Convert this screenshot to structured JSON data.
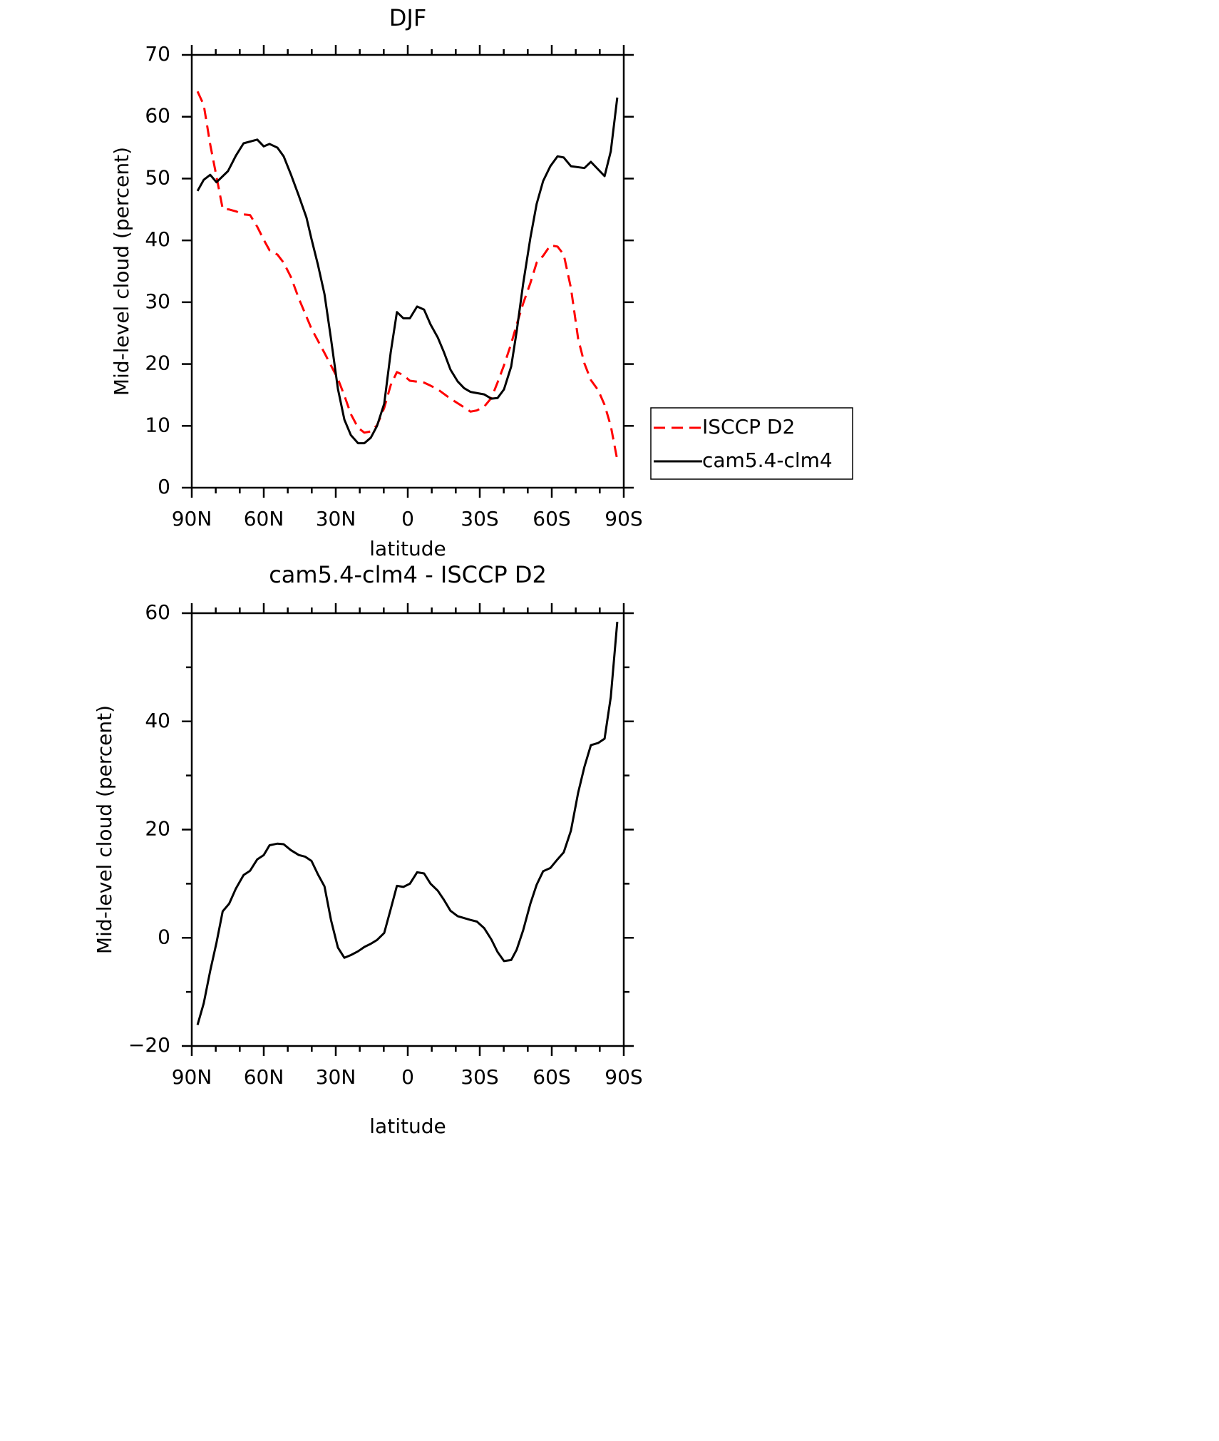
{
  "chart_data": [
    {
      "type": "line",
      "title": "DJF",
      "xlabel": "latitude",
      "ylabel": "Mid-level cloud (percent)",
      "xlim": [
        90,
        -90
      ],
      "xticks": [
        {
          "value": 90,
          "label": "90N"
        },
        {
          "value": 60,
          "label": "60N"
        },
        {
          "value": 30,
          "label": "30N"
        },
        0,
        {
          "value": -30,
          "label": "30S"
        },
        {
          "value": -60,
          "label": "60S"
        },
        {
          "value": -90,
          "label": "90S"
        }
      ],
      "xminorticks": [
        80,
        70,
        50,
        40,
        20,
        10,
        -10,
        -20,
        -40,
        -50,
        -70,
        -80
      ],
      "ylim": [
        0,
        70
      ],
      "yticks": [
        0,
        10,
        20,
        30,
        40,
        50,
        60,
        70
      ],
      "legend": "right",
      "series": [
        {
          "name": "ISCCP D2",
          "color": "#ff0000",
          "dash": true,
          "x": [
            87.6,
            85.0,
            82.3,
            79.7,
            77.1,
            74.4,
            71.6,
            68.4,
            65.7,
            62.7,
            60.0,
            57.6,
            54.3,
            51.7,
            48.7,
            45.4,
            40.1,
            34.7,
            29.1,
            26.4,
            23.7,
            20.7,
            18.1,
            15.4,
            12.8,
            9.8,
            7.1,
            4.5,
            1.8,
            -0.9,
            -6.8,
            -9.5,
            -12.5,
            -17.8,
            -23.5,
            -26.1,
            -28.8,
            -31.8,
            -34.8,
            -37.4,
            -40.1,
            -43.1,
            -45.4,
            -48.1,
            -51.1,
            -53.7,
            -56.4,
            -59.4,
            -62.4,
            -65.0,
            -68.0,
            -71.0,
            -73.6,
            -76.3,
            -79.3,
            -82.0,
            -84.6,
            -87.3
          ],
          "values": [
            64.1,
            61.9,
            55.5,
            50.3,
            45.1,
            45.0,
            44.7,
            44.2,
            44.1,
            42.2,
            40.1,
            38.4,
            37.7,
            36.4,
            34.1,
            30.6,
            25.7,
            21.8,
            17.6,
            14.9,
            11.9,
            9.7,
            8.9,
            9.1,
            10.1,
            12.9,
            16.6,
            18.7,
            18.2,
            17.3,
            17.0,
            16.5,
            15.9,
            14.4,
            13.0,
            12.3,
            12.5,
            13.1,
            14.5,
            17.0,
            19.8,
            23.3,
            26.4,
            29.8,
            33.1,
            36.4,
            37.5,
            39.2,
            39.0,
            37.7,
            32.3,
            24.1,
            20.1,
            17.4,
            15.8,
            13.4,
            10.0,
            4.5
          ]
        },
        {
          "name": "cam5.4-clm4",
          "color": "#000000",
          "dash": false,
          "x": [
            87.6,
            85.0,
            82.3,
            79.7,
            74.9,
            71.6,
            68.4,
            62.7,
            60.0,
            57.6,
            54.3,
            51.7,
            48.7,
            45.4,
            42.2,
            40.1,
            37.4,
            34.7,
            32.0,
            29.1,
            26.4,
            23.7,
            20.7,
            18.1,
            15.4,
            12.8,
            9.8,
            7.1,
            4.5,
            1.8,
            -0.9,
            -3.9,
            -6.8,
            -9.5,
            -12.5,
            -15.1,
            -17.8,
            -20.8,
            -23.5,
            -26.1,
            -31.8,
            -34.8,
            -37.4,
            -40.1,
            -43.1,
            -45.4,
            -48.1,
            -51.1,
            -53.7,
            -56.4,
            -59.4,
            -62.4,
            -65.0,
            -68.0,
            -73.6,
            -76.3,
            -82.0,
            -84.6,
            -87.3
          ],
          "values": [
            48.0,
            49.8,
            50.6,
            49.4,
            51.2,
            53.7,
            55.7,
            56.3,
            55.2,
            55.6,
            55.0,
            53.6,
            50.7,
            47.2,
            43.7,
            40.2,
            36.0,
            31.3,
            24.1,
            16.0,
            11.0,
            8.5,
            7.2,
            7.2,
            8.1,
            10.0,
            13.6,
            21.9,
            28.4,
            27.4,
            27.4,
            29.3,
            28.8,
            26.4,
            24.3,
            21.9,
            19.1,
            17.2,
            16.1,
            15.5,
            15.1,
            14.4,
            14.5,
            15.9,
            19.6,
            25.3,
            33.0,
            40.4,
            45.9,
            49.6,
            52.0,
            53.6,
            53.4,
            52.0,
            51.7,
            52.7,
            50.4,
            54.4,
            63.1
          ]
        }
      ]
    },
    {
      "type": "line",
      "title": "cam5.4-clm4 - ISCCP D2",
      "xlabel": "latitude",
      "ylabel": "Mid-level cloud (percent)",
      "xlim": [
        90,
        -90
      ],
      "xticks": [
        {
          "value": 90,
          "label": "90N"
        },
        {
          "value": 60,
          "label": "60N"
        },
        {
          "value": 30,
          "label": "30N"
        },
        0,
        {
          "value": -30,
          "label": "30S"
        },
        {
          "value": -60,
          "label": "60S"
        },
        {
          "value": -90,
          "label": "90S"
        }
      ],
      "xminorticks": [
        80,
        70,
        50,
        40,
        20,
        10,
        -10,
        -20,
        -40,
        -50,
        -70,
        -80
      ],
      "ylim": [
        -20,
        60
      ],
      "yticks": [
        {
          "value": -20,
          "label": "−20"
        },
        0,
        20,
        40,
        60
      ],
      "yminorticks": [
        -10,
        10,
        30,
        50
      ],
      "series": [
        {
          "color": "#000000",
          "dash": false,
          "x": [
            87.6,
            85.0,
            82.3,
            79.7,
            77.1,
            74.4,
            71.6,
            68.4,
            65.7,
            62.7,
            60.0,
            57.6,
            54.3,
            51.7,
            48.7,
            45.4,
            42.8,
            40.1,
            37.4,
            34.7,
            32.0,
            29.1,
            26.4,
            23.7,
            20.7,
            18.1,
            15.4,
            12.8,
            9.8,
            7.1,
            4.5,
            1.8,
            -0.9,
            -3.9,
            -6.8,
            -9.5,
            -12.5,
            -15.1,
            -17.8,
            -20.8,
            -26.1,
            -28.8,
            -31.8,
            -34.8,
            -37.4,
            -40.1,
            -43.1,
            -45.4,
            -48.1,
            -51.1,
            -53.7,
            -56.4,
            -59.4,
            -62.4,
            -65.0,
            -68.0,
            -71.0,
            -73.6,
            -76.3,
            -79.3,
            -82.0,
            -84.6,
            -87.3
          ],
          "values": [
            -16.1,
            -12.1,
            -6.1,
            -0.9,
            4.9,
            6.3,
            9.1,
            11.6,
            12.4,
            14.5,
            15.3,
            17.1,
            17.4,
            17.3,
            16.2,
            15.3,
            15.0,
            14.2,
            11.7,
            9.5,
            3.3,
            -1.8,
            -3.7,
            -3.2,
            -2.5,
            -1.7,
            -1.1,
            -0.4,
            0.9,
            5.3,
            9.6,
            9.4,
            10.0,
            12.1,
            11.9,
            10.0,
            8.7,
            7.0,
            5.0,
            4.0,
            3.3,
            3.0,
            1.8,
            -0.3,
            -2.6,
            -4.3,
            -4.1,
            -2.2,
            1.4,
            6.3,
            9.8,
            12.3,
            12.9,
            14.5,
            15.8,
            19.8,
            26.8,
            31.6,
            35.6,
            36.0,
            36.8,
            44.5,
            58.4
          ]
        }
      ]
    }
  ]
}
